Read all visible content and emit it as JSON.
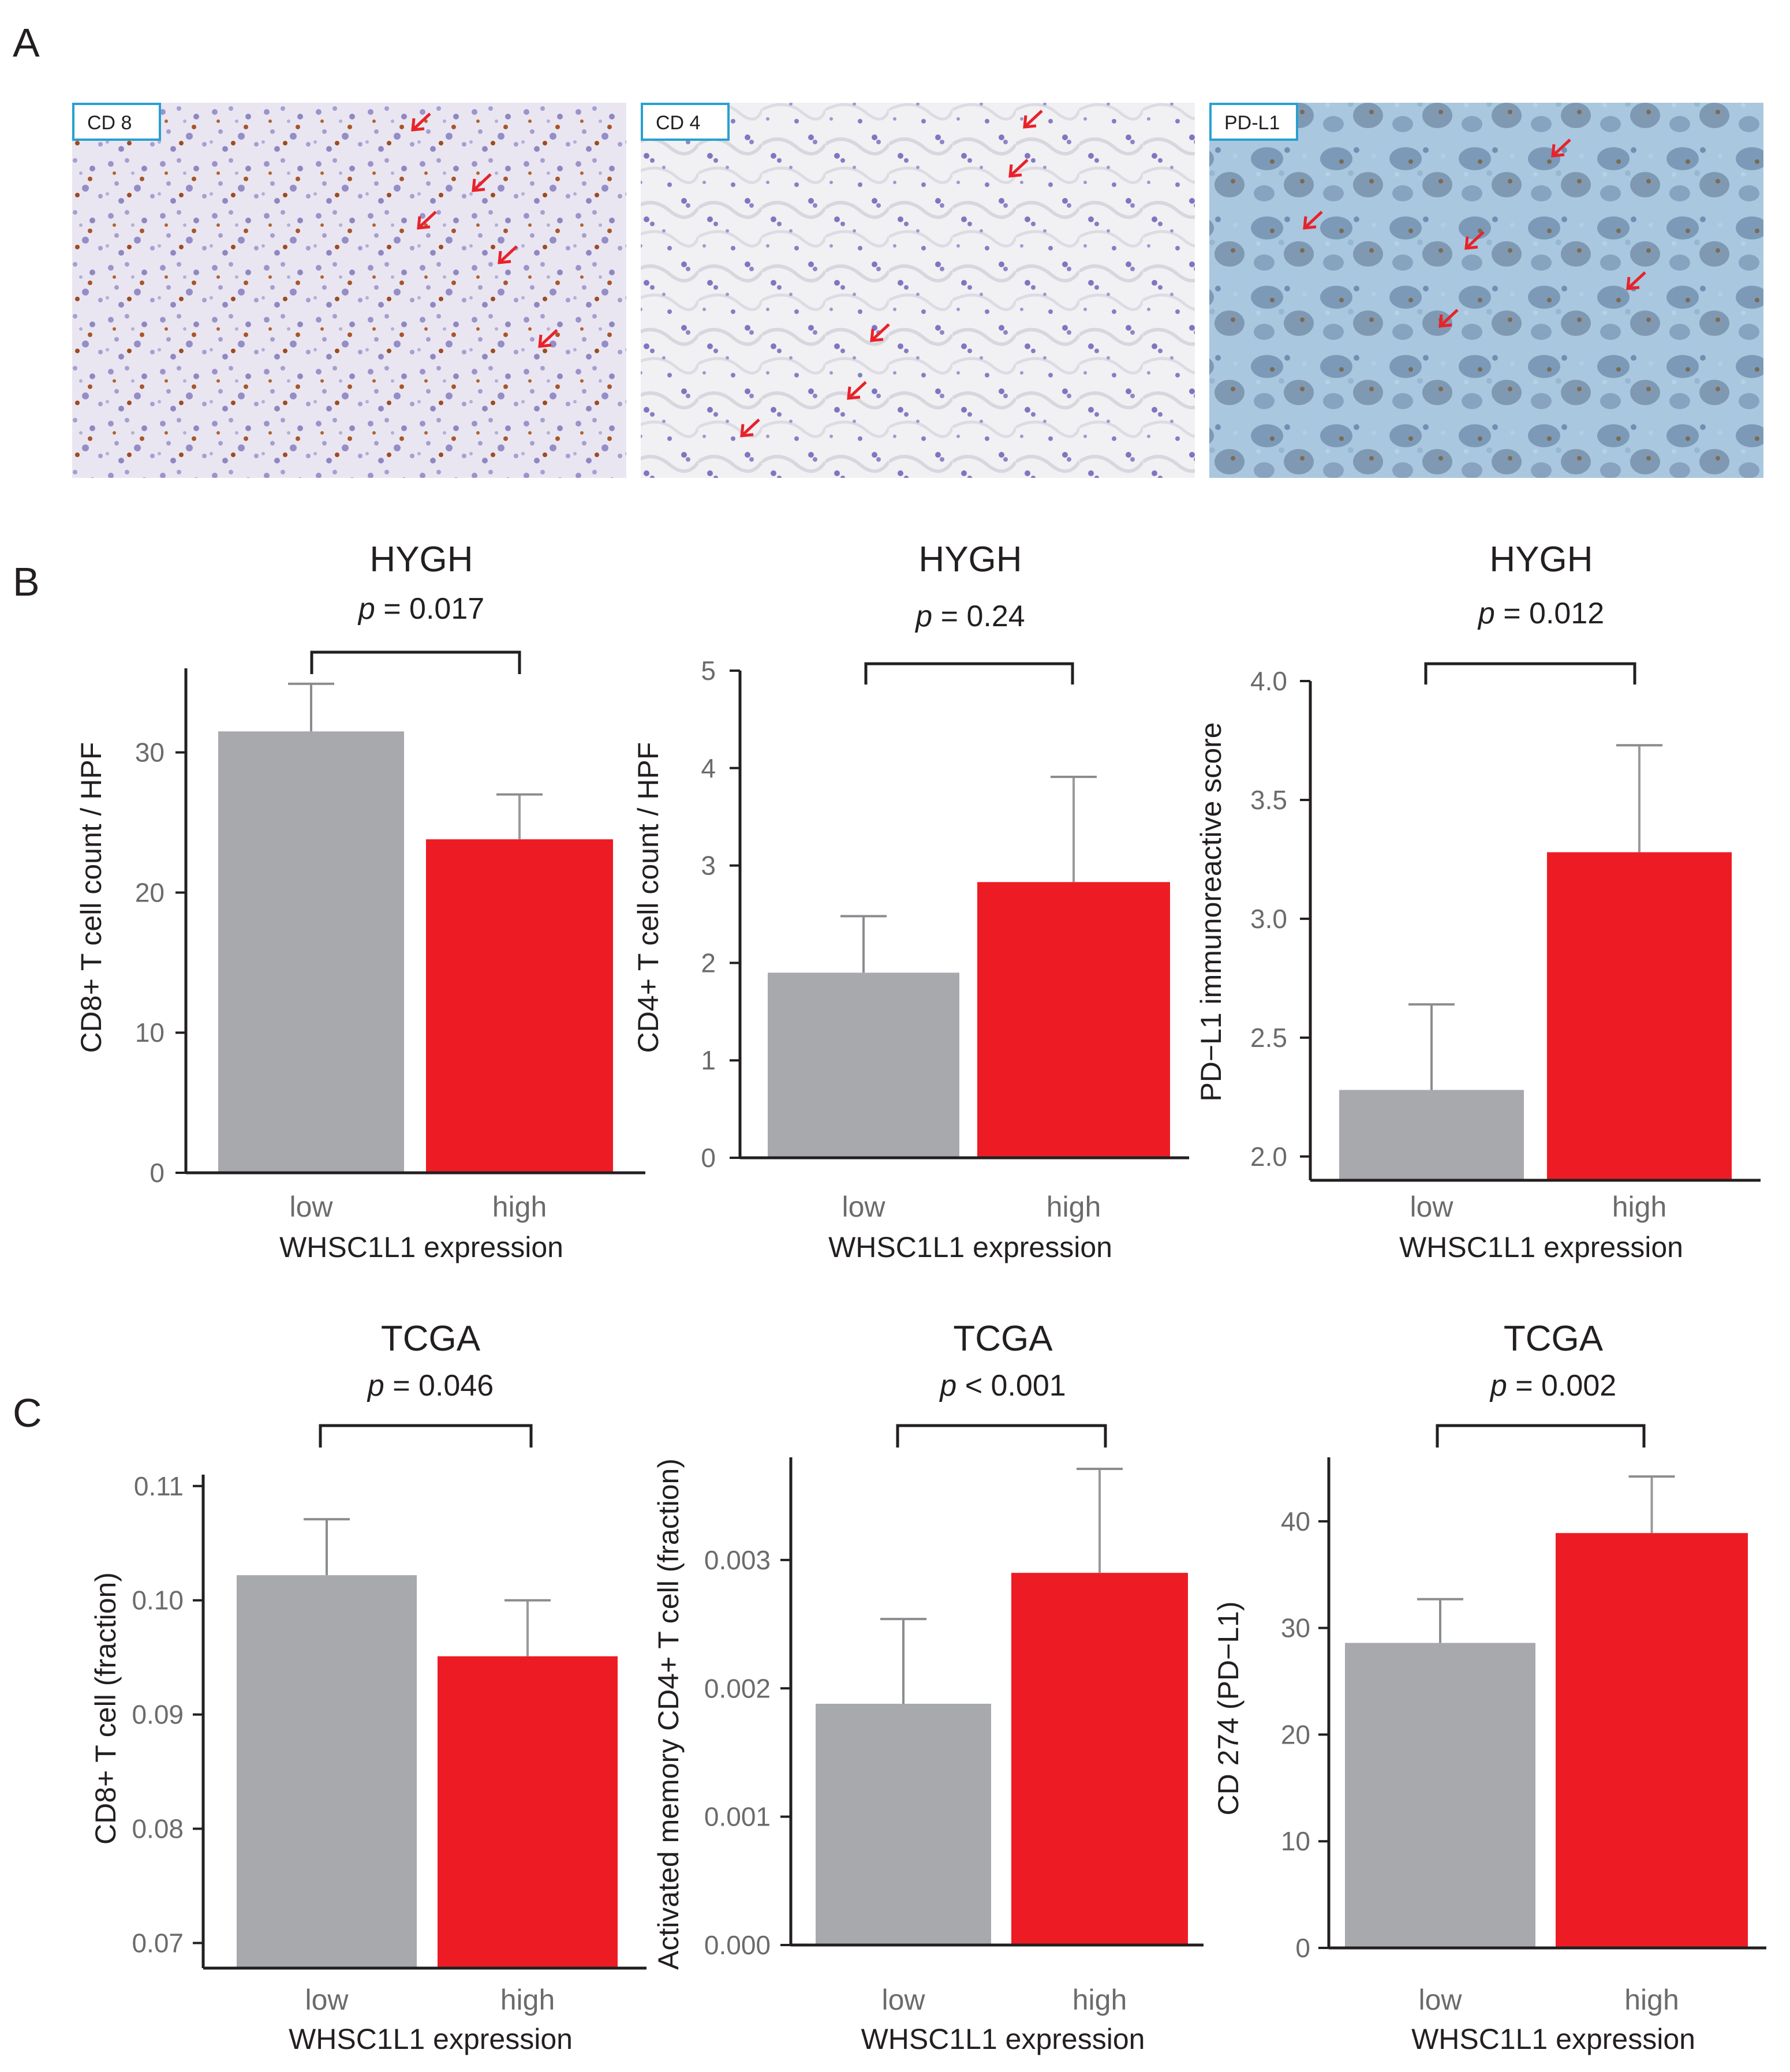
{
  "figure": {
    "panel_letters": [
      "A",
      "B",
      "C"
    ]
  },
  "colors": {
    "low": "#a7a9ac",
    "high": "#ed1c24",
    "axis": "#231f20",
    "arrow": "#e8222a",
    "label_border": "#2aa0d0"
  },
  "micrographs": [
    {
      "label": "CD 8",
      "stain": "brown-dots-on-purple"
    },
    {
      "label": "CD 4",
      "stain": "sparse-purple"
    },
    {
      "label": "PD-L1",
      "stain": "blue-brown"
    }
  ],
  "chart_data": [
    {
      "type": "bar",
      "title": "HYGH",
      "pvalue": "p = 0.017",
      "categories": [
        "low",
        "high"
      ],
      "values": [
        31.5,
        23.8
      ],
      "errors": [
        3.4,
        3.2
      ],
      "xlabel": "WHSC1L1 expression",
      "ylabel": "CD8+ T cell count / HPF",
      "ylim": [
        0,
        36
      ],
      "yticks": [
        0,
        10,
        20,
        30
      ],
      "ytick_labels": [
        "0",
        "10",
        "20",
        "30"
      ],
      "grid": false
    },
    {
      "type": "bar",
      "title": "HYGH",
      "pvalue": "p = 0.24",
      "categories": [
        "low",
        "high"
      ],
      "values": [
        1.9,
        2.83
      ],
      "errors": [
        0.58,
        1.08
      ],
      "xlabel": "WHSC1L1 expression",
      "ylabel": "CD4+ T cell count / HPF",
      "ylim": [
        0,
        5
      ],
      "yticks": [
        0,
        1,
        2,
        3,
        4,
        5
      ],
      "ytick_labels": [
        "0",
        "1",
        "2",
        "3",
        "4",
        "5"
      ],
      "grid": false
    },
    {
      "type": "bar",
      "title": "HYGH",
      "pvalue": "p = 0.012",
      "categories": [
        "low",
        "high"
      ],
      "values": [
        2.28,
        3.28
      ],
      "errors": [
        0.36,
        0.45
      ],
      "xlabel": "WHSC1L1 expression",
      "ylabel": "PD−L1 immunoreactive score",
      "ylim": [
        1.9,
        4.0
      ],
      "yticks": [
        2.0,
        2.5,
        3.0,
        3.5,
        4.0
      ],
      "ytick_labels": [
        "2.0",
        "2.5",
        "3.0",
        "3.5",
        "4.0"
      ],
      "grid": false
    },
    {
      "type": "bar",
      "title": "TCGA",
      "pvalue": "p = 0.046",
      "categories": [
        "low",
        "high"
      ],
      "values": [
        0.1022,
        0.0951
      ],
      "errors": [
        0.0049,
        0.0049
      ],
      "xlabel": "WHSC1L1 expression",
      "ylabel": "CD8+ T cell (fraction)",
      "ylim": [
        0.0678,
        0.111
      ],
      "yticks": [
        0.07,
        0.08,
        0.09,
        0.1,
        0.11
      ],
      "ytick_labels": [
        "0.07",
        "0.08",
        "0.09",
        "0.10",
        "0.11"
      ],
      "grid": false
    },
    {
      "type": "bar",
      "title": "TCGA",
      "pvalue": "p < 0.001",
      "categories": [
        "low",
        "high"
      ],
      "values": [
        0.00188,
        0.0029
      ],
      "errors": [
        0.00066,
        0.00081
      ],
      "xlabel": "WHSC1L1 expression",
      "ylabel": "Activated memory CD4+ T cell (fraction)",
      "ylim": [
        0,
        0.0038
      ],
      "yticks": [
        0,
        0.001,
        0.002,
        0.003
      ],
      "ytick_labels": [
        "0.000",
        "0.001",
        "0.002",
        "0.003"
      ],
      "grid": false
    },
    {
      "type": "bar",
      "title": "TCGA",
      "pvalue": "p = 0.002",
      "categories": [
        "low",
        "high"
      ],
      "values": [
        28.6,
        38.9
      ],
      "errors": [
        4.1,
        5.3
      ],
      "xlabel": "WHSC1L1 expression",
      "ylabel": "CD 274 (PD−L1)",
      "ylim": [
        0,
        46
      ],
      "yticks": [
        0,
        10,
        20,
        30,
        40
      ],
      "ytick_labels": [
        "0",
        "10",
        "20",
        "30",
        "40"
      ],
      "grid": false
    }
  ]
}
